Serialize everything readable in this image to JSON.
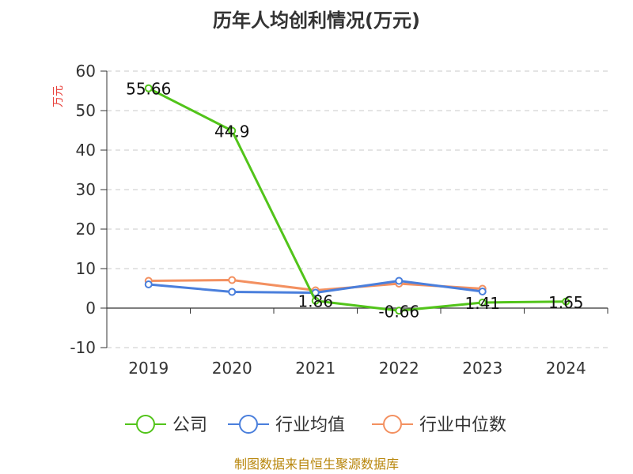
{
  "chart_data": {
    "type": "line",
    "title": "历年人均创利情况(万元)",
    "ylabel": "万元",
    "xlabel": "",
    "categories": [
      "2019",
      "2020",
      "2021",
      "2022",
      "2023",
      "2024"
    ],
    "ylim": [
      -10,
      60
    ],
    "yticks": [
      60,
      50,
      40,
      30,
      20,
      10,
      0,
      -10
    ],
    "grid": true,
    "legend_position": "bottom",
    "series": [
      {
        "name": "公司",
        "color": "#52c41a",
        "values": [
          55.66,
          44.9,
          1.86,
          -0.66,
          1.41,
          1.65
        ],
        "labels": [
          "55.66",
          "44.9",
          "1.86",
          "-0.66",
          "1.41",
          "1.65"
        ]
      },
      {
        "name": "行业均值",
        "color": "#4a7fdc",
        "values": [
          6.0,
          4.1,
          3.9,
          6.9,
          4.2,
          null
        ]
      },
      {
        "name": "行业中位数",
        "color": "#f39060",
        "values": [
          6.9,
          7.1,
          4.5,
          6.2,
          4.9,
          null
        ]
      }
    ],
    "source": "制图数据来自恒生聚源数据库"
  }
}
